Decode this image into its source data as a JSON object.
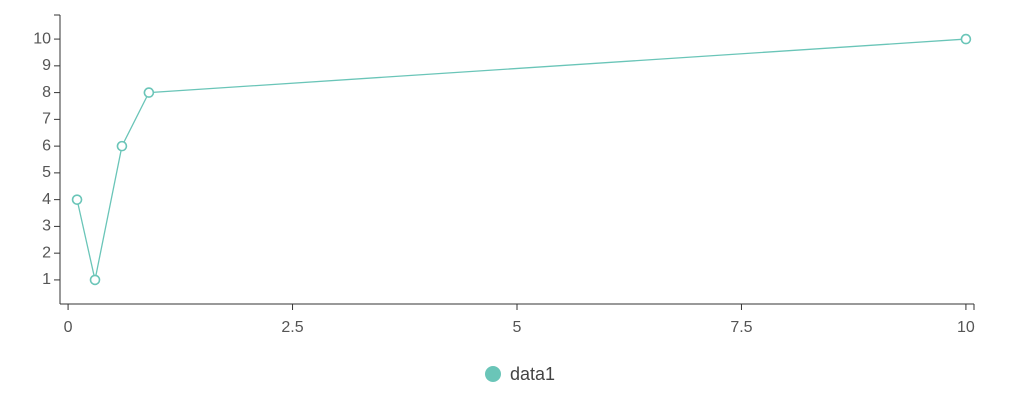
{
  "chart_data": {
    "type": "line",
    "x": [
      0.1,
      0.3,
      0.6,
      0.9,
      10
    ],
    "series": [
      {
        "name": "data1",
        "color": "#6ac5b8",
        "values": [
          4,
          1,
          6,
          8,
          10
        ]
      }
    ],
    "xlim": [
      -0.09,
      10.09
    ],
    "xticks": [
      0,
      2.5,
      5,
      7.5,
      10
    ],
    "ylim": [
      0.1,
      10.9
    ],
    "yticks": [
      1,
      2,
      3,
      4,
      5,
      6,
      7,
      8,
      9,
      10
    ],
    "legend": "bottom"
  }
}
